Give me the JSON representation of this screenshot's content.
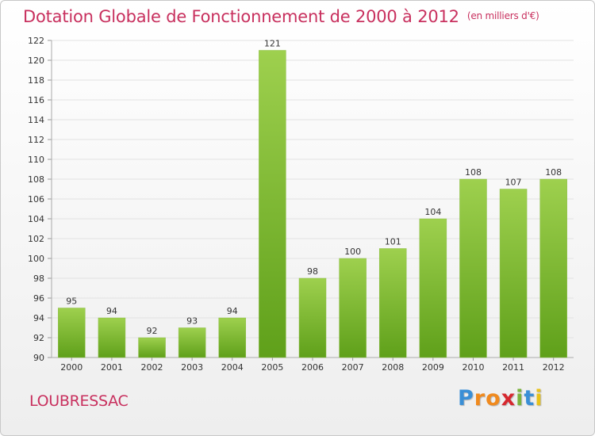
{
  "title": "Dotation Globale de Fonctionnement de 2000 à 2012",
  "subtitle": "(en milliers d'€)",
  "commune": "LOUBRESSAC",
  "logo": {
    "letters": [
      "P",
      "r",
      "o",
      "x",
      "i",
      "t",
      "i"
    ],
    "colors": [
      "#3a8fd6",
      "#f08a1e",
      "#f08a1e",
      "#d6282f",
      "#7bb33c",
      "#3a8fd6",
      "#e8c21b"
    ]
  },
  "chart_data": {
    "type": "bar",
    "categories": [
      "2000",
      "2001",
      "2002",
      "2003",
      "2004",
      "2005",
      "2006",
      "2007",
      "2008",
      "2009",
      "2010",
      "2011",
      "2012"
    ],
    "values": [
      95,
      94,
      92,
      93,
      94,
      121,
      98,
      100,
      101,
      104,
      108,
      107,
      108
    ],
    "data_labels": [
      "95",
      "94",
      "92",
      "93",
      "94",
      "121",
      "98",
      "100",
      "101",
      "104",
      "108",
      "107",
      "108"
    ],
    "ylim": [
      90,
      122
    ],
    "yticks": [
      90,
      92,
      94,
      96,
      98,
      100,
      102,
      104,
      106,
      108,
      110,
      112,
      114,
      116,
      118,
      120,
      122
    ],
    "grid": true,
    "bar_color_top": "#9ed04e",
    "bar_color_bottom": "#5fa01a"
  }
}
